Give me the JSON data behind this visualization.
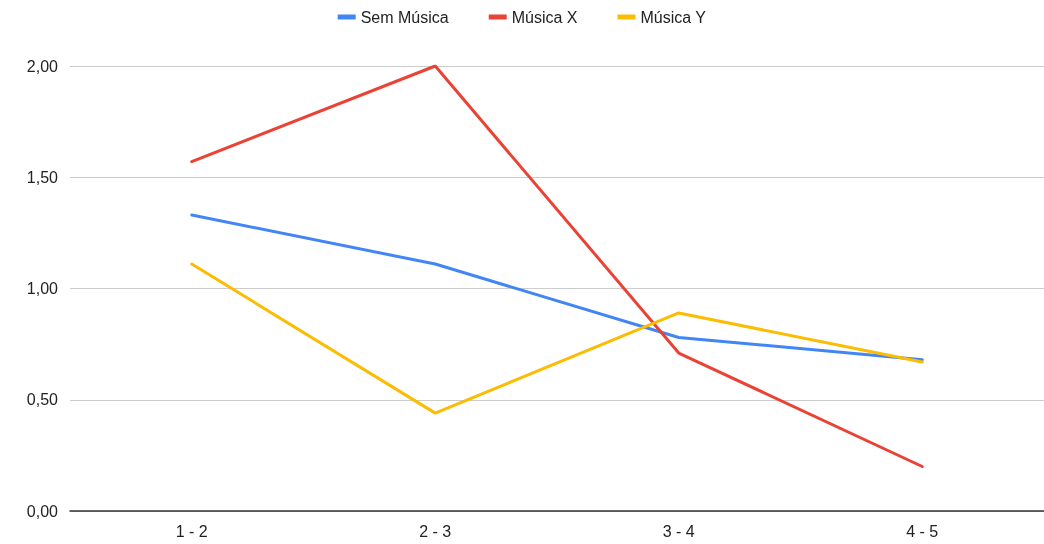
{
  "chart_data": {
    "type": "line",
    "categories": [
      "1 - 2",
      "2 - 3",
      "3 - 4",
      "4 - 5"
    ],
    "series": [
      {
        "name": "Sem Música",
        "color": "#4285f4",
        "values": [
          1.33,
          1.11,
          0.78,
          0.68
        ]
      },
      {
        "name": "Música X",
        "color": "#ea4335",
        "values": [
          1.57,
          2.0,
          0.71,
          0.2
        ]
      },
      {
        "name": "Música Y",
        "color": "#fbbc04",
        "values": [
          1.11,
          0.44,
          0.89,
          0.67
        ]
      }
    ],
    "ylim": [
      0,
      2
    ],
    "yticks": [
      {
        "value": 0,
        "label": "0,00"
      },
      {
        "value": 0.5,
        "label": "0,50"
      },
      {
        "value": 1,
        "label": "1,00"
      },
      {
        "value": 1.5,
        "label": "1,50"
      },
      {
        "value": 2,
        "label": "2,00"
      }
    ],
    "grid": "y",
    "legend": "top",
    "marker": "none",
    "line_style": "solid"
  }
}
